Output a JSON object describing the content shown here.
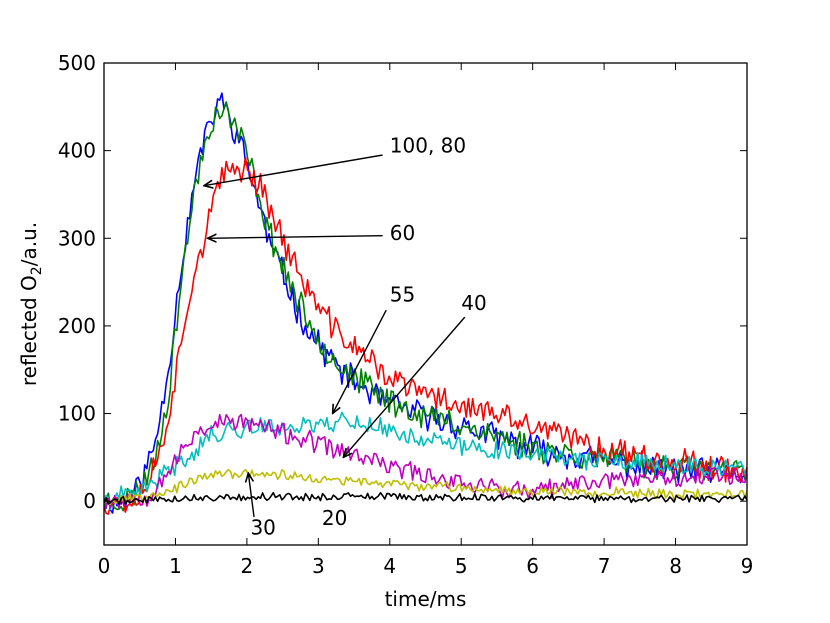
{
  "chart_data": {
    "type": "line",
    "title": "",
    "xlabel": "time/ms",
    "ylabel_prefix": "reflected O",
    "ylabel_sub": "2",
    "ylabel_suffix": "/a.u.",
    "xlim": [
      0,
      9
    ],
    "ylim": [
      -50,
      500
    ],
    "xticks": [
      0,
      1,
      2,
      3,
      4,
      5,
      6,
      7,
      8,
      9
    ],
    "yticks": [
      0,
      100,
      200,
      300,
      400,
      500
    ],
    "grid": false,
    "legend": "none",
    "series": [
      {
        "key": "blue",
        "color": "#0000ff",
        "noise": 14,
        "seed": 11,
        "x": [
          0,
          0.3,
          0.5,
          0.7,
          0.9,
          1.05,
          1.2,
          1.35,
          1.5,
          1.6,
          1.75,
          1.9,
          2.1,
          2.3,
          2.5,
          2.7,
          2.9,
          3.1,
          3.3,
          3.6,
          4.0,
          4.4,
          4.8,
          5.2,
          6.0,
          7.0,
          8.0,
          9.0
        ],
        "y": [
          0,
          0,
          20,
          60,
          150,
          250,
          330,
          400,
          430,
          460,
          440,
          410,
          360,
          300,
          260,
          220,
          190,
          170,
          150,
          130,
          110,
          100,
          90,
          80,
          60,
          45,
          35,
          30
        ]
      },
      {
        "key": "green",
        "color": "#008000",
        "noise": 14,
        "seed": 23,
        "x": [
          0,
          0.3,
          0.5,
          0.7,
          0.9,
          1.05,
          1.2,
          1.35,
          1.5,
          1.6,
          1.75,
          1.9,
          2.1,
          2.3,
          2.5,
          2.7,
          2.9,
          3.1,
          3.3,
          3.6,
          4.0,
          4.4,
          4.8,
          5.2,
          6.0,
          7.0,
          8.0,
          9.0
        ],
        "y": [
          0,
          0,
          15,
          45,
          120,
          230,
          320,
          390,
          430,
          450,
          440,
          420,
          370,
          310,
          270,
          230,
          200,
          175,
          155,
          135,
          115,
          100,
          92,
          82,
          62,
          48,
          38,
          32
        ]
      },
      {
        "key": "red",
        "color": "#ff0000",
        "noise": 14,
        "seed": 37,
        "x": [
          0,
          0.4,
          0.6,
          0.8,
          1.0,
          1.2,
          1.4,
          1.6,
          1.8,
          2.0,
          2.2,
          2.4,
          2.6,
          2.8,
          3.0,
          3.3,
          3.6,
          4.0,
          4.4,
          4.8,
          5.2,
          6.0,
          7.0,
          8.0,
          9.0
        ],
        "y": [
          0,
          0,
          20,
          60,
          140,
          240,
          300,
          360,
          380,
          380,
          360,
          320,
          280,
          250,
          220,
          190,
          170,
          140,
          125,
          115,
          105,
          85,
          60,
          45,
          35
        ]
      },
      {
        "key": "cyan",
        "color": "#00bfbf",
        "noise": 10,
        "seed": 41,
        "x": [
          0,
          0.5,
          1.0,
          1.5,
          2.0,
          2.5,
          3.0,
          3.3,
          3.6,
          4.0,
          5.0,
          6.0,
          7.0,
          8.0,
          9.0
        ],
        "y": [
          0,
          10,
          40,
          75,
          85,
          85,
          88,
          92,
          90,
          80,
          62,
          55,
          45,
          40,
          35
        ]
      },
      {
        "key": "magenta",
        "color": "#bf00bf",
        "noise": 10,
        "seed": 53,
        "x": [
          0,
          0.6,
          1.0,
          1.3,
          1.6,
          2.0,
          2.4,
          2.8,
          3.2,
          3.6,
          4.0,
          4.5,
          5.0,
          5.5,
          6.0,
          7.0,
          8.0,
          9.0
        ],
        "y": [
          0,
          5,
          45,
          80,
          90,
          90,
          80,
          70,
          60,
          50,
          40,
          30,
          22,
          15,
          10,
          25,
          28,
          30
        ]
      },
      {
        "key": "olive",
        "color": "#bfbf00",
        "noise": 5,
        "seed": 67,
        "x": [
          0,
          0.5,
          1.0,
          1.5,
          2.0,
          2.5,
          3.0,
          3.5,
          4.0,
          5.0,
          6.0,
          7.0,
          8.0,
          9.0
        ],
        "y": [
          0,
          5,
          15,
          30,
          32,
          30,
          25,
          22,
          20,
          15,
          12,
          10,
          8,
          8
        ]
      },
      {
        "key": "black",
        "color": "#000000",
        "noise": 4,
        "seed": 79,
        "x": [
          0,
          1.0,
          2.0,
          3.0,
          4.0,
          5.0,
          6.0,
          7.0,
          8.0,
          9.0
        ],
        "y": [
          0,
          3,
          5,
          5,
          5,
          4,
          4,
          3,
          3,
          3
        ]
      }
    ],
    "annotations": [
      {
        "key": "ann-100-80",
        "text": "100, 80",
        "text_x": 4.0,
        "text_y": 398,
        "arrow_from": [
          3.9,
          395
        ],
        "arrow_to": [
          1.4,
          360
        ]
      },
      {
        "key": "ann-60",
        "text": "60",
        "text_x": 4.0,
        "text_y": 298,
        "arrow_from": [
          3.9,
          303
        ],
        "arrow_to": [
          1.45,
          300
        ]
      },
      {
        "key": "ann-55",
        "text": "55",
        "text_x": 4.0,
        "text_y": 228,
        "arrow_from": [
          3.95,
          218
        ],
        "arrow_to": [
          3.2,
          100
        ]
      },
      {
        "key": "ann-40",
        "text": "40",
        "text_x": 5.0,
        "text_y": 218,
        "arrow_from": [
          5.05,
          210
        ],
        "arrow_to": [
          3.35,
          50
        ]
      },
      {
        "key": "ann-30",
        "text": "30",
        "text_x": 2.05,
        "text_y": -38,
        "arrow_from": [
          2.1,
          -18
        ],
        "arrow_to": [
          2.02,
          32
        ]
      },
      {
        "key": "ann-20",
        "text": "20",
        "text_x": 3.05,
        "text_y": -27,
        "arrow_from": [
          3.2,
          -8
        ],
        "arrow_to": [
          3.1,
          0
        ],
        "arrow": false
      }
    ]
  }
}
